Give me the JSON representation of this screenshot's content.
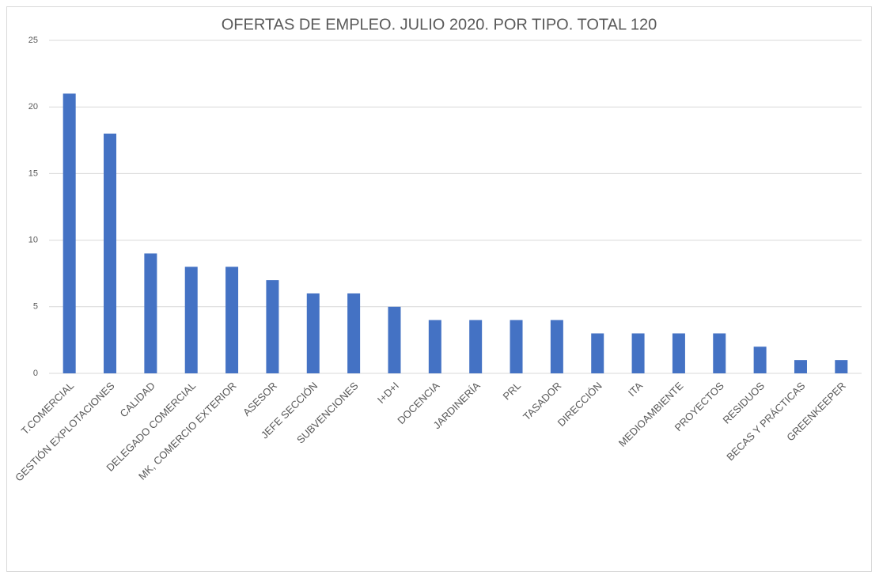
{
  "chart_data": {
    "type": "bar",
    "title": "OFERTAS DE EMPLEO. JULIO 2020. POR TIPO. TOTAL 120",
    "categories": [
      "T.COMERCIAL",
      "GESTIÓN EXPLOTACIONES",
      "CALIDAD",
      "DELEGADO COMERCIAL",
      "MK, COMERCIO EXTERIOR",
      "ASESOR",
      "JEFE SECCIÓN",
      "SUBVENCIONES",
      "I+D+I",
      "DOCENCIA",
      "JARDINERÍA",
      "PRL",
      "TASADOR",
      "DIRECCIÓN",
      "ITA",
      "MEDIOAMBIENTE",
      "PROYECTOS",
      "RESIDUOS",
      "BECAS Y PRÁCTICAS",
      "GREENKEEPER"
    ],
    "values": [
      21,
      18,
      9,
      8,
      8,
      7,
      6,
      6,
      5,
      4,
      4,
      4,
      4,
      3,
      3,
      3,
      3,
      2,
      1,
      1
    ],
    "color": "#4472c4",
    "ylim": [
      0,
      25
    ],
    "yticks": [
      0,
      5,
      10,
      15,
      20,
      25
    ],
    "grid": true
  }
}
